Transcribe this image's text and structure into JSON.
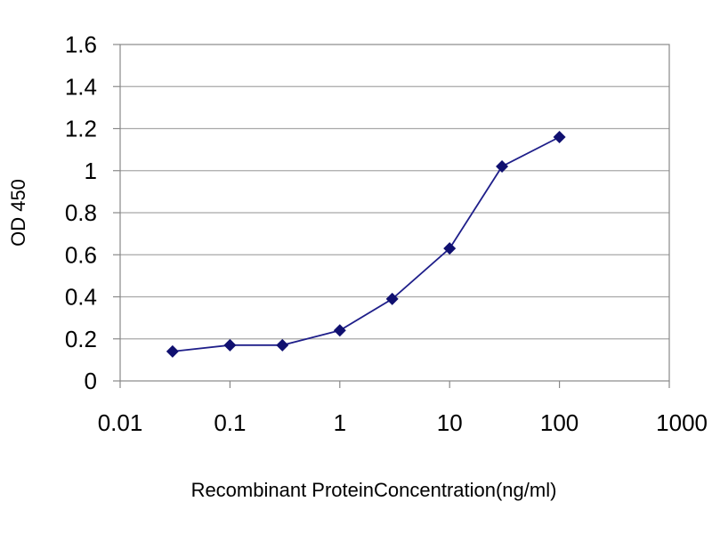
{
  "chart_data": {
    "type": "line",
    "title": "",
    "xlabel": "Recombinant ProteinConcentration(ng/ml)",
    "ylabel": "OD 450",
    "x_scale": "log",
    "xlim": [
      0.01,
      1000
    ],
    "ylim": [
      0,
      1.6
    ],
    "x_ticks": [
      0.01,
      0.1,
      1,
      10,
      100,
      1000
    ],
    "x_tick_labels": [
      "0.01",
      "0.1",
      "1",
      "10",
      "100",
      "1000"
    ],
    "y_ticks": [
      0,
      0.2,
      0.4,
      0.6,
      0.8,
      1,
      1.2,
      1.4,
      1.6
    ],
    "y_tick_labels": [
      "0",
      "0.2",
      "0.4",
      "0.6",
      "0.8",
      "1",
      "1.2",
      "1.4",
      "1.6"
    ],
    "grid": "horizontal",
    "legend": "none",
    "colors": {
      "series": "#1f1f8a",
      "marker": "#101070",
      "grid": "#a8a8a8",
      "frame": "#888888"
    },
    "series": [
      {
        "x": [
          0.03,
          0.1,
          0.3,
          1,
          3,
          10,
          30,
          100
        ],
        "y": [
          0.14,
          0.17,
          0.17,
          0.24,
          0.39,
          0.63,
          1.02,
          1.16
        ]
      }
    ]
  }
}
